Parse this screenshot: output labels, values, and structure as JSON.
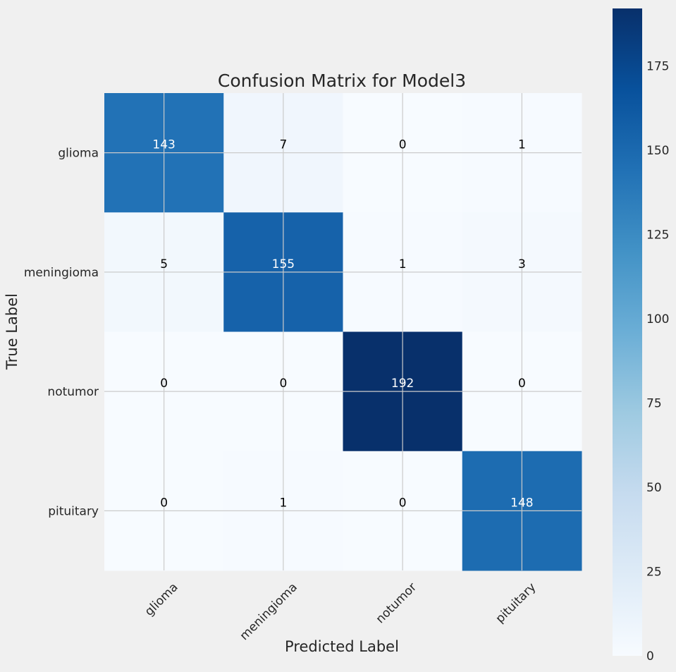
{
  "chart_data": {
    "type": "heatmap",
    "title": "Confusion Matrix for Model3",
    "xlabel": "Predicted Label",
    "ylabel": "True Label",
    "x_categories": [
      "glioma",
      "meningioma",
      "notumor",
      "pituitary"
    ],
    "y_categories": [
      "glioma",
      "meningioma",
      "notumor",
      "pituitary"
    ],
    "values": [
      [
        143,
        7,
        0,
        1
      ],
      [
        5,
        155,
        1,
        3
      ],
      [
        0,
        0,
        192,
        0
      ],
      [
        0,
        1,
        0,
        148
      ]
    ],
    "colormap": "Blues",
    "color_range": [
      0,
      192
    ],
    "colorbar_ticks": [
      0,
      25,
      50,
      75,
      100,
      125,
      150,
      175
    ],
    "grid": true,
    "cell_text_light_color": "#ffffff",
    "cell_text_dark_color": "#000000"
  }
}
